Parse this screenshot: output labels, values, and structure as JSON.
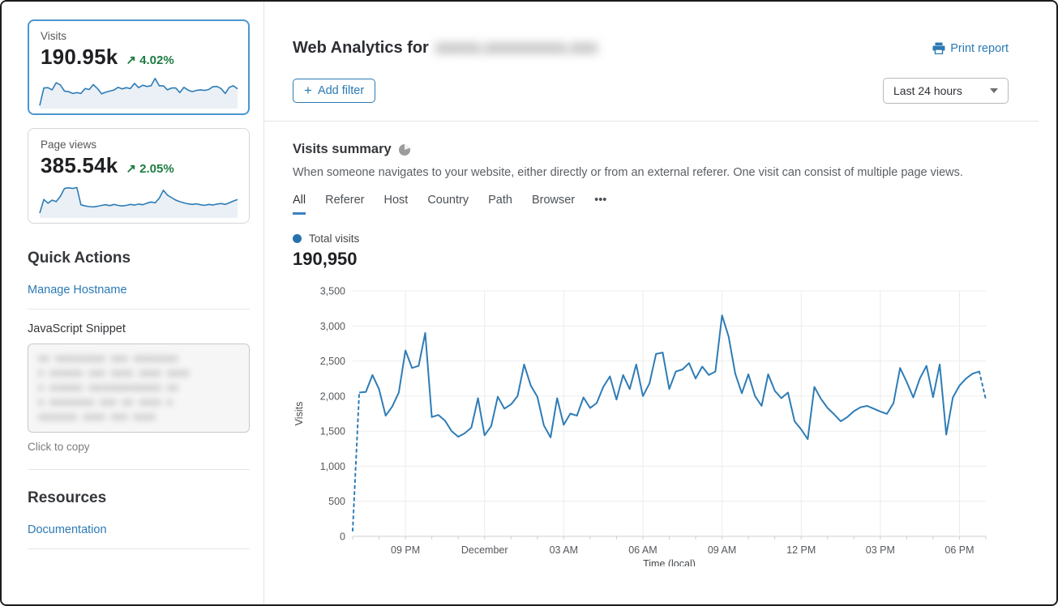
{
  "colors": {
    "accent_blue": "#2b7ab5",
    "chart_line": "#2e7cb6",
    "spark_fill": "rgba(80,130,175,0.12)",
    "green": "#1e7c42",
    "grid": "#ececec",
    "axis": "#cfcfcf",
    "tick_text": "#55585c"
  },
  "sidebar": {
    "visits_card": {
      "label": "Visits",
      "value": "190.95k",
      "delta_arrow": "↗",
      "delta": "4.02%",
      "spark": [
        2,
        59,
        60,
        53,
        76,
        69,
        49,
        47,
        41,
        44,
        41,
        57,
        54,
        70,
        57,
        40,
        45,
        49,
        52,
        61,
        56,
        60,
        57,
        74,
        60,
        68,
        64,
        66,
        90,
        66,
        66,
        53,
        59,
        59,
        44,
        61,
        52,
        47,
        51,
        53,
        51,
        54,
        63,
        64,
        57,
        41,
        61,
        66,
        56
      ]
    },
    "pageviews_card": {
      "label": "Page views",
      "value": "385.54k",
      "delta_arrow": "↗",
      "delta": "2.05%",
      "spark": [
        8,
        52,
        40,
        50,
        45,
        62,
        88,
        90,
        88,
        91,
        35,
        31,
        29,
        28,
        30,
        33,
        35,
        32,
        36,
        33,
        31,
        33,
        36,
        34,
        37,
        35,
        40,
        44,
        41,
        56,
        82,
        66,
        58,
        50,
        45,
        41,
        38,
        36,
        38,
        35,
        33,
        36,
        34,
        37,
        39,
        36,
        41,
        47,
        52
      ]
    },
    "quick_actions": {
      "title": "Quick Actions",
      "manage_hostname_label": "Manage Hostname",
      "snippet_label": "JavaScript Snippet",
      "snippet_redacted_lines": [
        "xx xxxxxxxxx xxx xxxxxxxx",
        "x xxxxxx xxx xxxx xxxx xxxx",
        "x xxxxxx xxxxxxxxxxxxx xx",
        "x xxxxxxxx xxx xx xxxx x",
        "xxxxxxx xxxx xxx xxxx"
      ],
      "copy_hint": "Click to copy"
    },
    "resources": {
      "title": "Resources",
      "documentation_label": "Documentation"
    }
  },
  "header": {
    "title": "Web Analytics for",
    "domain_redacted_placeholder": "xxxxx.xxxxxxxxx.xxx",
    "print_label": "Print report"
  },
  "filters": {
    "add_filter_label": "Add filter",
    "plus": "+",
    "time_range_selected": "Last 24 hours"
  },
  "summary": {
    "title": "Visits summary",
    "description": "When someone navigates to your website, either directly or from an external referer. One visit can consist of multiple page views.",
    "tabs": [
      "All",
      "Referer",
      "Host",
      "Country",
      "Path",
      "Browser",
      "•••"
    ],
    "active_tab": "All",
    "legend_label": "Total visits",
    "total_value": "190,950"
  },
  "chart_data": {
    "type": "line",
    "title": "Total visits",
    "xlabel": "Time (local)",
    "ylabel": "Visits",
    "x_start": "7:00 PM previous day",
    "x_range_hours": 24,
    "interval_minutes": 15,
    "x_tick_labels": [
      "09 PM",
      "December",
      "03 AM",
      "06 AM",
      "09 AM",
      "12 PM",
      "03 PM",
      "06 PM"
    ],
    "x_tick_positions_hours": [
      2,
      5,
      8,
      11,
      14,
      17,
      20,
      23
    ],
    "ylim": [
      0,
      3500
    ],
    "y_ticks": [
      0,
      500,
      1000,
      1500,
      2000,
      2500,
      3000,
      3500
    ],
    "grid": true,
    "legend_position": "top-left",
    "dashed_first_segment": true,
    "dashed_last_segment": true,
    "series": [
      {
        "name": "Total visits",
        "values": [
          80,
          2050,
          2060,
          2300,
          2100,
          1720,
          1850,
          2050,
          2650,
          2400,
          2430,
          2900,
          1700,
          1730,
          1650,
          1500,
          1420,
          1470,
          1550,
          1970,
          1440,
          1570,
          1990,
          1820,
          1880,
          2000,
          2450,
          2150,
          1990,
          1580,
          1410,
          1970,
          1590,
          1750,
          1720,
          1980,
          1830,
          1900,
          2130,
          2280,
          1950,
          2300,
          2100,
          2450,
          2000,
          2180,
          2600,
          2620,
          2100,
          2350,
          2380,
          2470,
          2250,
          2420,
          2300,
          2350,
          3150,
          2850,
          2320,
          2040,
          2310,
          2000,
          1860,
          2310,
          2075,
          1970,
          2050,
          1640,
          1525,
          1385,
          2130,
          1960,
          1830,
          1740,
          1640,
          1700,
          1785,
          1840,
          1860,
          1820,
          1780,
          1745,
          1900,
          2400,
          2200,
          1980,
          2250,
          2430,
          1985,
          2450,
          1450,
          1980,
          2150,
          2250,
          2320,
          2350,
          1950
        ]
      }
    ]
  }
}
